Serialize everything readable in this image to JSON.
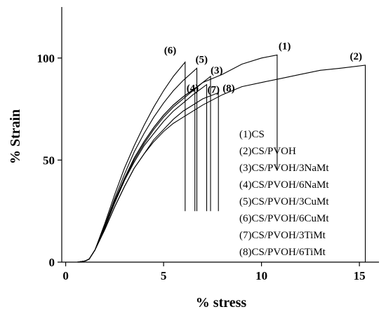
{
  "chart_data": {
    "type": "line",
    "title": "",
    "xlabel": "% stress",
    "ylabel": "% Strain",
    "xlim": [
      -0.2,
      16
    ],
    "ylim": [
      0,
      125
    ],
    "xticks": [
      0,
      5,
      10,
      15
    ],
    "yticks": [
      0,
      50,
      100
    ],
    "grid": false,
    "legend_position": "right-center",
    "series": [
      {
        "name": "(1)CS",
        "label": "(1)",
        "points": [
          [
            0,
            0
          ],
          [
            0.6,
            0
          ],
          [
            1.0,
            0.6
          ],
          [
            1.2,
            1.5
          ],
          [
            1.5,
            6
          ],
          [
            2,
            17
          ],
          [
            2.5,
            29
          ],
          [
            3,
            41
          ],
          [
            3.5,
            51
          ],
          [
            4,
            59
          ],
          [
            4.5,
            66
          ],
          [
            5,
            72
          ],
          [
            5.5,
            77
          ],
          [
            6,
            81
          ],
          [
            7,
            88
          ],
          [
            8,
            92
          ],
          [
            9,
            97
          ],
          [
            10,
            100
          ],
          [
            10.8,
            101.5
          ]
        ],
        "drop_to": 45
      },
      {
        "name": "(2)CS/PVOH",
        "label": "(2)",
        "points": [
          [
            0,
            0
          ],
          [
            0.6,
            0
          ],
          [
            1.0,
            0.6
          ],
          [
            1.2,
            1.5
          ],
          [
            1.5,
            6
          ],
          [
            2,
            16
          ],
          [
            2.5,
            27
          ],
          [
            3,
            37
          ],
          [
            3.5,
            46
          ],
          [
            4,
            53
          ],
          [
            4.5,
            59
          ],
          [
            5,
            64
          ],
          [
            5.5,
            68
          ],
          [
            6,
            71
          ],
          [
            7,
            77
          ],
          [
            8,
            82
          ],
          [
            9,
            86
          ],
          [
            10,
            88
          ],
          [
            11,
            90
          ],
          [
            12,
            92
          ],
          [
            13,
            94
          ],
          [
            14,
            95
          ],
          [
            15.3,
            96.5
          ]
        ],
        "drop_to": 0
      },
      {
        "name": "(3)CS/PVOH/3NaMt",
        "label": "(3)",
        "points": [
          [
            0,
            0
          ],
          [
            0.6,
            0
          ],
          [
            1.0,
            0.6
          ],
          [
            1.2,
            1.5
          ],
          [
            1.5,
            6
          ],
          [
            2,
            17
          ],
          [
            2.5,
            29
          ],
          [
            3,
            40
          ],
          [
            3.5,
            50
          ],
          [
            4,
            58
          ],
          [
            4.5,
            65
          ],
          [
            5,
            71
          ],
          [
            5.5,
            76
          ],
          [
            6,
            80
          ],
          [
            6.5,
            84
          ],
          [
            7,
            88
          ],
          [
            7.4,
            91
          ]
        ],
        "drop_to": 25
      },
      {
        "name": "(4)CS/PVOH/6NaMt",
        "label": "(4)",
        "points": [
          [
            0,
            0
          ],
          [
            0.6,
            0
          ],
          [
            1.0,
            0.6
          ],
          [
            1.2,
            1.5
          ],
          [
            1.5,
            6
          ],
          [
            2,
            17
          ],
          [
            2.5,
            30
          ],
          [
            3,
            41
          ],
          [
            3.5,
            51
          ],
          [
            4,
            59
          ],
          [
            4.5,
            66
          ],
          [
            5,
            72
          ],
          [
            5.5,
            77
          ],
          [
            6,
            81
          ],
          [
            6.6,
            85
          ]
        ],
        "drop_to": 25
      },
      {
        "name": "(5)CS/PVOH/3CuMt",
        "label": "(5)",
        "points": [
          [
            0,
            0
          ],
          [
            0.6,
            0
          ],
          [
            1.0,
            0.6
          ],
          [
            1.2,
            1.5
          ],
          [
            1.5,
            6
          ],
          [
            2,
            18
          ],
          [
            2.5,
            31
          ],
          [
            3,
            43
          ],
          [
            3.5,
            54
          ],
          [
            4,
            63
          ],
          [
            4.5,
            71
          ],
          [
            5,
            78
          ],
          [
            5.5,
            84
          ],
          [
            6,
            89
          ],
          [
            6.7,
            95
          ]
        ],
        "drop_to": 25
      },
      {
        "name": "(6)CS/PVOH/6CuMt",
        "label": "(6)",
        "points": [
          [
            0,
            0
          ],
          [
            0.6,
            0
          ],
          [
            1.0,
            0.6
          ],
          [
            1.2,
            1.5
          ],
          [
            1.5,
            6
          ],
          [
            2,
            19
          ],
          [
            2.5,
            33
          ],
          [
            3,
            46
          ],
          [
            3.5,
            57
          ],
          [
            4,
            67
          ],
          [
            4.5,
            76
          ],
          [
            5,
            84
          ],
          [
            5.5,
            91
          ],
          [
            6.1,
            98
          ]
        ],
        "drop_to": 25
      },
      {
        "name": "(7)CS/PVOH/3TiMt",
        "label": "(7)",
        "points": [
          [
            0,
            0
          ],
          [
            0.6,
            0
          ],
          [
            1.0,
            0.6
          ],
          [
            1.2,
            1.5
          ],
          [
            1.5,
            6
          ],
          [
            2,
            17
          ],
          [
            2.5,
            29
          ],
          [
            3,
            40
          ],
          [
            3.5,
            49
          ],
          [
            4,
            57
          ],
          [
            4.5,
            63
          ],
          [
            5,
            69
          ],
          [
            5.5,
            74
          ],
          [
            6,
            78
          ],
          [
            6.5,
            82
          ],
          [
            7.2,
            87
          ]
        ],
        "drop_to": 25
      },
      {
        "name": "(8)CS/PVOH/6TiMt",
        "label": "(8)",
        "points": [
          [
            0,
            0
          ],
          [
            0.6,
            0
          ],
          [
            1.0,
            0.6
          ],
          [
            1.2,
            1.5
          ],
          [
            1.5,
            6
          ],
          [
            2,
            16
          ],
          [
            2.5,
            27
          ],
          [
            3,
            37
          ],
          [
            3.5,
            46
          ],
          [
            4,
            53
          ],
          [
            4.5,
            60
          ],
          [
            5,
            65
          ],
          [
            5.5,
            70
          ],
          [
            6,
            74
          ],
          [
            7,
            80
          ],
          [
            7.8,
            83
          ]
        ],
        "drop_to": 25
      }
    ]
  }
}
